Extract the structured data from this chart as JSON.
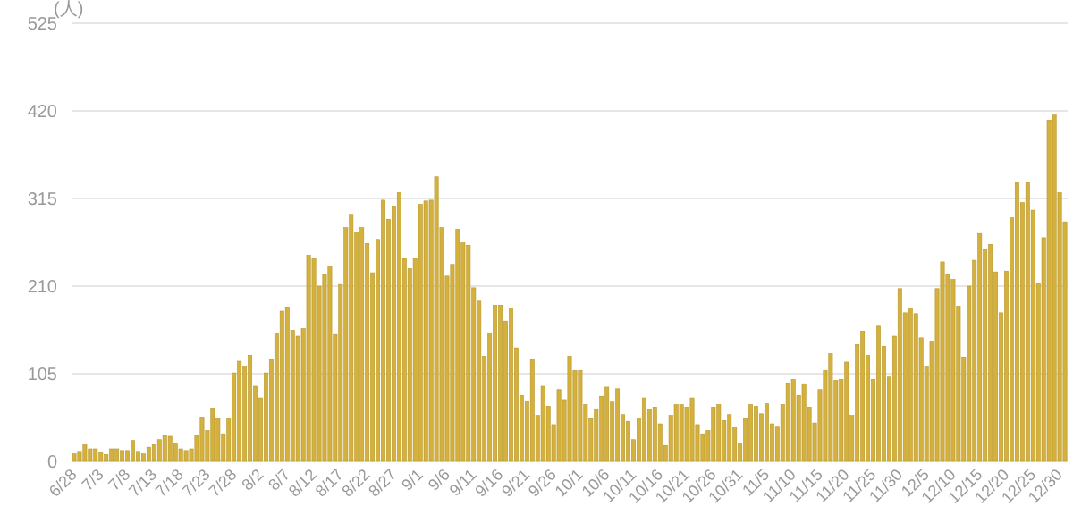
{
  "chart_data": {
    "type": "bar",
    "ylabel": "(人)",
    "color": "#d4b03c",
    "ylim": [
      0,
      525
    ],
    "yticks": [
      0,
      105,
      210,
      315,
      420,
      525
    ],
    "grid": "y",
    "categories": [
      "6/28",
      null,
      null,
      null,
      null,
      "7/3",
      null,
      null,
      null,
      null,
      "7/8",
      null,
      null,
      null,
      null,
      "7/13",
      null,
      null,
      null,
      null,
      "7/18",
      null,
      null,
      null,
      null,
      "7/23",
      null,
      null,
      null,
      null,
      "7/28",
      null,
      null,
      null,
      null,
      "8/2",
      null,
      null,
      null,
      null,
      "8/7",
      null,
      null,
      null,
      null,
      "8/12",
      null,
      null,
      null,
      null,
      "8/17",
      null,
      null,
      null,
      null,
      "8/22",
      null,
      null,
      null,
      null,
      "8/27",
      null,
      null,
      null,
      null,
      "9/1",
      null,
      null,
      null,
      null,
      "9/6",
      null,
      null,
      null,
      null,
      "9/11",
      null,
      null,
      null,
      null,
      "9/16",
      null,
      null,
      null,
      null,
      "9/21",
      null,
      null,
      null,
      null,
      "9/26",
      null,
      null,
      null,
      null,
      "10/1",
      null,
      null,
      null,
      null,
      "10/6",
      null,
      null,
      null,
      null,
      "10/11",
      null,
      null,
      null,
      null,
      "10/16",
      null,
      null,
      null,
      null,
      "10/21",
      null,
      null,
      null,
      null,
      "10/26",
      null,
      null,
      null,
      null,
      "10/31",
      null,
      null,
      null,
      null,
      "11/5",
      null,
      null,
      null,
      null,
      "11/10",
      null,
      null,
      null,
      null,
      "11/15",
      null,
      null,
      null,
      null,
      "11/20",
      null,
      null,
      null,
      null,
      "11/25",
      null,
      null,
      null,
      null,
      "11/30",
      null,
      null,
      null,
      null,
      "12/5",
      null,
      null,
      null,
      null,
      "12/10",
      null,
      null,
      null,
      null,
      "12/15",
      null,
      null,
      null,
      null,
      "12/20",
      null,
      null,
      null,
      null,
      "12/25",
      null,
      null,
      null,
      null,
      "12/30",
      null
    ],
    "values": [
      9,
      12,
      20,
      15,
      15,
      11,
      8,
      15,
      15,
      13,
      13,
      25,
      12,
      9,
      17,
      20,
      26,
      31,
      30,
      22,
      15,
      13,
      15,
      31,
      53,
      37,
      64,
      51,
      33,
      52,
      106,
      120,
      114,
      127,
      90,
      76,
      106,
      122,
      154,
      180,
      185,
      157,
      150,
      159,
      247,
      243,
      210,
      224,
      234,
      152,
      212,
      280,
      296,
      275,
      280,
      261,
      226,
      266,
      313,
      290,
      306,
      322,
      243,
      231,
      243,
      308,
      312,
      313,
      341,
      280,
      222,
      236,
      278,
      262,
      259,
      208,
      192,
      126,
      154,
      187,
      187,
      168,
      184,
      136,
      79,
      72,
      122,
      55,
      90,
      66,
      44,
      86,
      74,
      126,
      109,
      109,
      68,
      51,
      63,
      78,
      89,
      71,
      87,
      56,
      48,
      26,
      52,
      76,
      62,
      65,
      45,
      19,
      55,
      68,
      68,
      65,
      76,
      44,
      33,
      37,
      65,
      68,
      49,
      56,
      40,
      22,
      51,
      68,
      66,
      57,
      69,
      45,
      41,
      68,
      94,
      98,
      79,
      93,
      65,
      46,
      86,
      109,
      129,
      97,
      98,
      119,
      55,
      140,
      156,
      127,
      98,
      162,
      138,
      101,
      150,
      207,
      178,
      184,
      177,
      148,
      114,
      144,
      207,
      239,
      224,
      218,
      186,
      125,
      210,
      241,
      273,
      254,
      260,
      227,
      178,
      228,
      292,
      334,
      310,
      334,
      301,
      213,
      268,
      409,
      415,
      322,
      287
    ]
  }
}
